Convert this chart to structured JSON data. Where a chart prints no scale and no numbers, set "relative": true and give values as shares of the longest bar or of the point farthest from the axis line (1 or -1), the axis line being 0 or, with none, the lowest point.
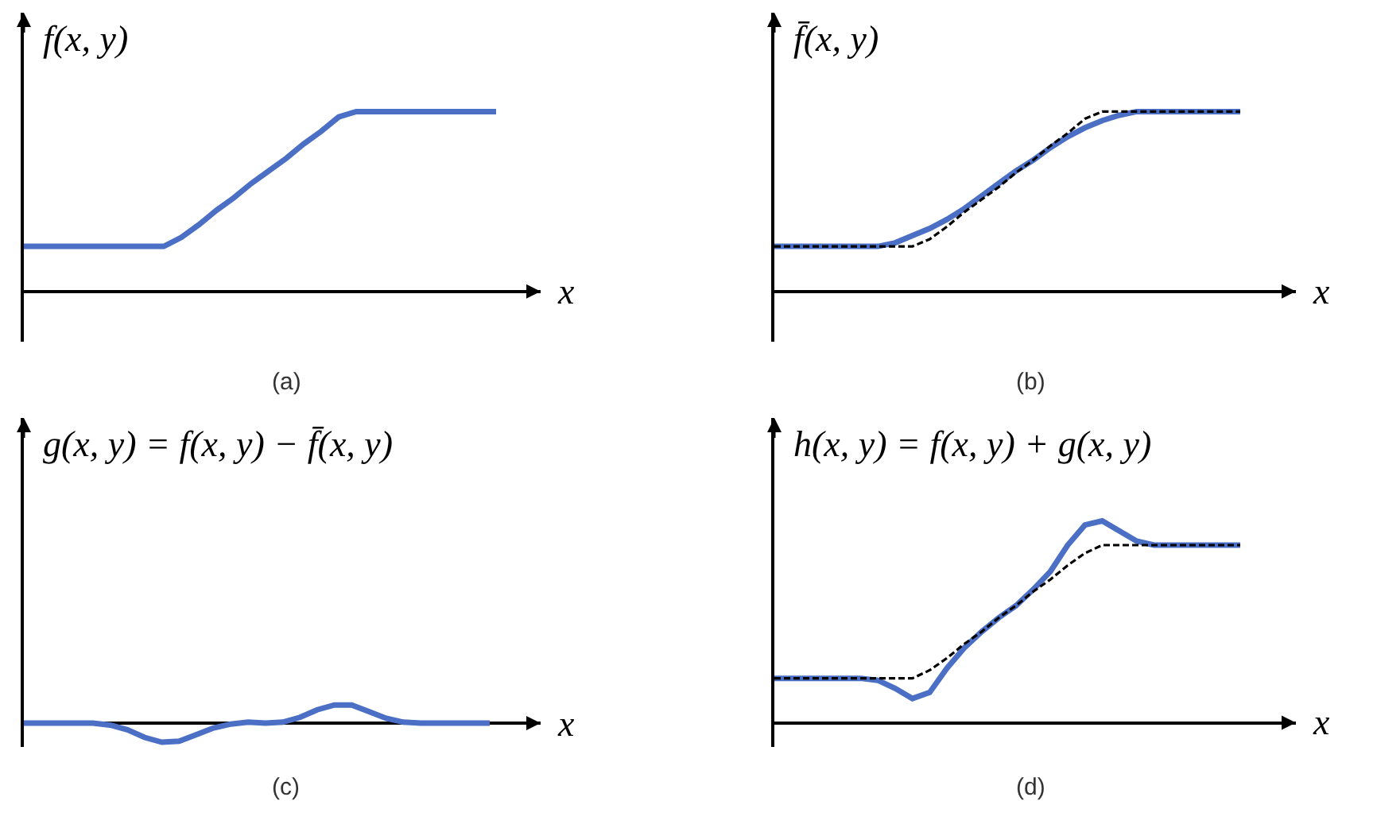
{
  "chart_data": [
    {
      "type": "line",
      "relative": true,
      "title": "f(x, y)",
      "xlabel": "x",
      "annotations": [
        "(a)"
      ],
      "line_style": "solid",
      "categories": [
        null,
        null,
        null,
        null,
        null,
        null,
        null,
        null,
        null,
        null,
        null,
        null,
        null,
        null,
        null,
        null,
        null,
        null,
        null,
        null,
        null,
        null,
        null,
        null,
        null,
        null,
        null,
        null
      ],
      "series": [
        {
          "color": "#4a6fc4",
          "values": [
            0.25,
            0.25,
            0.25,
            0.25,
            0.25,
            0.25,
            0.25,
            0.25,
            0.25,
            0.3,
            0.37,
            0.45,
            0.52,
            0.6,
            0.67,
            0.74,
            0.82,
            0.89,
            0.97,
            1,
            1,
            1,
            1,
            1,
            1,
            1,
            1,
            1
          ]
        }
      ]
    },
    {
      "type": "line",
      "relative": true,
      "title": "f̄(x, y)",
      "xlabel": "x",
      "annotations": [
        "(b)"
      ],
      "line_style": "solid",
      "categories": [
        null,
        null,
        null,
        null,
        null,
        null,
        null,
        null,
        null,
        null,
        null,
        null,
        null,
        null,
        null,
        null,
        null,
        null,
        null,
        null,
        null,
        null,
        null,
        null,
        null,
        null,
        null,
        null
      ],
      "series": [
        {
          "color": "#4a6fc4",
          "values": [
            0.25,
            0.25,
            0.25,
            0.25,
            0.25,
            0.25,
            0.25,
            0.27,
            0.31,
            0.35,
            0.4,
            0.46,
            0.53,
            0.6,
            0.67,
            0.73,
            0.8,
            0.86,
            0.91,
            0.95,
            0.98,
            1,
            1,
            1,
            1,
            1,
            1,
            1
          ]
        },
        {
          "color": "#000000",
          "line_style": "dashed",
          "values": [
            0.25,
            0.25,
            0.25,
            0.25,
            0.25,
            0.25,
            0.25,
            0.25,
            0.25,
            0.29,
            0.36,
            0.44,
            0.51,
            0.58,
            0.66,
            0.73,
            0.81,
            0.88,
            0.96,
            1,
            1,
            1,
            1,
            1,
            1,
            1,
            1,
            1
          ]
        }
      ]
    },
    {
      "type": "line",
      "relative": true,
      "title": "g(x, y) = f(x, y) − f̄(x, y)",
      "xlabel": "x",
      "annotations": [
        "(c)"
      ],
      "line_style": "solid",
      "categories": [
        null,
        null,
        null,
        null,
        null,
        null,
        null,
        null,
        null,
        null,
        null,
        null,
        null,
        null,
        null,
        null,
        null,
        null,
        null,
        null,
        null,
        null,
        null,
        null,
        null,
        null,
        null,
        null
      ],
      "series": [
        {
          "color": "#4a6fc4",
          "values": [
            0,
            0,
            0,
            0,
            0,
            -0.1,
            -0.35,
            -0.75,
            -1,
            -0.95,
            -0.6,
            -0.25,
            -0.05,
            0.05,
            0,
            0.05,
            0.3,
            0.7,
            0.95,
            0.95,
            0.6,
            0.25,
            0.05,
            0,
            0,
            0,
            0,
            0
          ]
        }
      ]
    },
    {
      "type": "line",
      "relative": true,
      "title": "h(x, y) = f(x, y) + g(x, y)",
      "xlabel": "x",
      "annotations": [
        "(d)"
      ],
      "line_style": "solid",
      "categories": [
        null,
        null,
        null,
        null,
        null,
        null,
        null,
        null,
        null,
        null,
        null,
        null,
        null,
        null,
        null,
        null,
        null,
        null,
        null,
        null,
        null,
        null,
        null,
        null,
        null,
        null,
        null,
        null
      ],
      "series": [
        {
          "color": "#4a6fc4",
          "values": [
            0.22,
            0.22,
            0.22,
            0.22,
            0.22,
            0.22,
            0.21,
            0.17,
            0.12,
            0.15,
            0.27,
            0.37,
            0.45,
            0.52,
            0.58,
            0.66,
            0.75,
            0.88,
            0.98,
            1,
            0.95,
            0.9,
            0.88,
            0.88,
            0.88,
            0.88,
            0.88,
            0.88
          ]
        },
        {
          "color": "#000000",
          "line_style": "dashed",
          "values": [
            0.22,
            0.22,
            0.22,
            0.22,
            0.22,
            0.22,
            0.22,
            0.22,
            0.22,
            0.26,
            0.32,
            0.39,
            0.45,
            0.52,
            0.58,
            0.65,
            0.71,
            0.78,
            0.84,
            0.88,
            0.88,
            0.88,
            0.88,
            0.88,
            0.88,
            0.88,
            0.88,
            0.88
          ]
        }
      ]
    }
  ]
}
